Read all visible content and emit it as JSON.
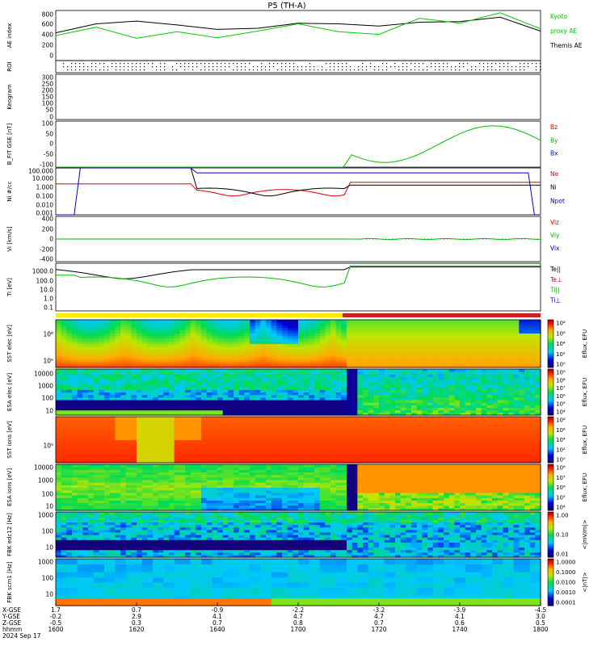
{
  "title": "P5 (TH-A)",
  "colors": {
    "kyoto": "#00cc00",
    "themis": "#000000",
    "red": "#dd0000",
    "green": "#00bb00",
    "blue": "#0000cc"
  },
  "panels": [
    {
      "id": "ae",
      "ylabel": "AE index",
      "yticks": [
        "800",
        "600",
        "400",
        "200",
        "0"
      ],
      "legend": [
        {
          "text": "Kyoto",
          "color": "#00cc00"
        },
        {
          "text": "proxy AE",
          "color": "#00cc00"
        },
        {
          "text": "Themis AE",
          "color": "#000000"
        }
      ]
    },
    {
      "id": "roi",
      "ylabel": "ROI",
      "yticks": [],
      "legend": []
    },
    {
      "id": "keogram",
      "ylabel": "Keogram",
      "yticks": [
        "300",
        "250",
        "200",
        "150",
        "100",
        "50",
        "0"
      ],
      "legend": []
    },
    {
      "id": "bfit",
      "ylabel": "B_FIT GSE [nT]",
      "yticks": [
        "100",
        "50",
        "0",
        "-50",
        "-100"
      ],
      "legend": [
        {
          "text": "Bz",
          "color": "#dd0000"
        },
        {
          "text": "By",
          "color": "#00bb00"
        },
        {
          "text": "Bx",
          "color": "#0000cc"
        }
      ]
    },
    {
      "id": "ni",
      "ylabel": "Ni #/cc",
      "yticks": [
        "100.000",
        "10.000",
        "1.000",
        "0.100",
        "0.010",
        "0.001"
      ],
      "legend": [
        {
          "text": "Ne",
          "color": "#dd0000"
        },
        {
          "text": "Ni",
          "color": "#000000"
        },
        {
          "text": "Npot",
          "color": "#0000cc"
        }
      ]
    },
    {
      "id": "vi",
      "ylabel": "Vi [km/s]",
      "yticks": [
        "400",
        "200",
        "0",
        "-200",
        "-400"
      ],
      "legend": [
        {
          "text": "Viz",
          "color": "#dd0000"
        },
        {
          "text": "Viy",
          "color": "#00bb00"
        },
        {
          "text": "Vix",
          "color": "#0000cc"
        }
      ]
    },
    {
      "id": "ti",
      "ylabel": "Ti [eV]",
      "yticks": [
        "1000.0",
        "100.0",
        "10.0",
        "1.0",
        "0.1"
      ],
      "legend": [
        {
          "text": "Te||",
          "color": "#000000"
        },
        {
          "text": "Te⊥",
          "color": "#dd0000"
        },
        {
          "text": "Ti||",
          "color": "#00bb00"
        },
        {
          "text": "Ti⊥",
          "color": "#0000cc"
        }
      ]
    },
    {
      "id": "sste",
      "ylabel": "SST elec [eV]",
      "yticks": [
        "10⁶",
        "10⁵"
      ],
      "legend": []
    },
    {
      "id": "esae",
      "ylabel": "ESA elec [eV]",
      "yticks": [
        "10000",
        "1000",
        "100",
        "10"
      ],
      "legend": []
    },
    {
      "id": "ssti",
      "ylabel": "SST ions [eV]",
      "yticks": [
        "10⁵"
      ],
      "legend": []
    },
    {
      "id": "esai",
      "ylabel": "ESA ions [eV]",
      "yticks": [
        "10000",
        "1000",
        "100",
        "10"
      ],
      "legend": []
    },
    {
      "id": "fbke",
      "ylabel": "FBK edc12 [Hz]",
      "yticks": [
        "1000",
        "100",
        "10"
      ],
      "legend": []
    },
    {
      "id": "fbkb",
      "ylabel": "FBK scm1 [Hz]",
      "yticks": [
        "1000",
        "100",
        "10"
      ],
      "legend": []
    }
  ],
  "colorbars": [
    {
      "panel": "sste",
      "label": "Eflux, EFU",
      "ticks": [
        "10⁸",
        "10⁶",
        "10⁴",
        "10²",
        "10⁰"
      ]
    },
    {
      "panel": "esae",
      "label": "Eflux, EFU",
      "ticks": [
        "10⁹",
        "10⁸",
        "10⁷",
        "10⁶",
        "10⁵",
        "10⁴"
      ]
    },
    {
      "panel": "ssti",
      "label": "Eflux, EFU",
      "ticks": [
        "10⁸",
        "10⁶",
        "10⁴",
        "10²",
        "10⁰"
      ]
    },
    {
      "panel": "esai",
      "label": "Eflux, EFU",
      "ticks": [
        "10⁸",
        "10⁷",
        "10⁶",
        "10⁵",
        "10⁴"
      ]
    },
    {
      "panel": "fbke",
      "label": "<|mV/m|>",
      "ticks": [
        "1.00",
        "0.10",
        "0.01"
      ]
    },
    {
      "panel": "fbkb",
      "label": "<|nT|>",
      "ticks": [
        "1.0000",
        "0.1000",
        "0.0100",
        "0.0010",
        "0.0001"
      ]
    }
  ],
  "time_axis": {
    "row_labels": [
      "X-GSE",
      "Y-GSE",
      "Z-GSE",
      "hhmm",
      "2024 Sep 17"
    ],
    "ticks": [
      {
        "x": "1.7",
        "y": "-0.2",
        "z": "-0.5",
        "t": "1600"
      },
      {
        "x": "0.7",
        "y": "2.9",
        "z": "0.3",
        "t": "1620"
      },
      {
        "x": "-0.9",
        "y": "4.1",
        "z": "0.7",
        "t": "1640"
      },
      {
        "x": "-2.2",
        "y": "4.7",
        "z": "0.8",
        "t": "1700"
      },
      {
        "x": "-3.2",
        "y": "4.7",
        "z": "0.7",
        "t": "1720"
      },
      {
        "x": "-3.9",
        "y": "4.1",
        "z": "0.6",
        "t": "1740"
      },
      {
        "x": "-4.5",
        "y": "3.0",
        "z": "0.5",
        "t": "1800"
      }
    ]
  },
  "chart_data": {
    "type": "line",
    "title": "P5 (TH-A)",
    "x": [
      "1600",
      "1610",
      "1620",
      "1630",
      "1640",
      "1650",
      "1700",
      "1710",
      "1720",
      "1730",
      "1740",
      "1750",
      "1800"
    ],
    "xlabel": "hhmm",
    "ylabel": "AE index",
    "ylim": [
      -100,
      800
    ],
    "series": [
      {
        "name": "Themis AE",
        "values": [
          400,
          560,
          610,
          540,
          460,
          480,
          570,
          560,
          520,
          590,
          600,
          680,
          430
        ]
      },
      {
        "name": "Kyoto proxy AE",
        "values": [
          350,
          500,
          300,
          420,
          310,
          430,
          560,
          420,
          370,
          660,
          570,
          760,
          470
        ]
      }
    ],
    "grid": false,
    "legend": "right"
  }
}
